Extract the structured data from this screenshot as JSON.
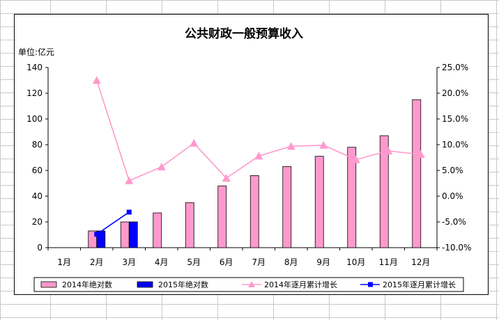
{
  "sheet": {
    "grid_color": "#c8c8c8"
  },
  "chart_data": {
    "type": "bar",
    "title": "公共财政一般预算收入",
    "ylabel": "单位:亿元",
    "categories": [
      "1月",
      "2月",
      "3月",
      "4月",
      "5月",
      "6月",
      "7月",
      "8月",
      "9月",
      "10月",
      "11月",
      "12月"
    ],
    "ylim": [
      0,
      140
    ],
    "y_ticks": [
      "0",
      "20",
      "40",
      "60",
      "80",
      "100",
      "120",
      "140"
    ],
    "y2lim": [
      -0.1,
      0.25
    ],
    "y2_ticks": [
      "-10.0%",
      "-5.0%",
      "0.0%",
      "5.0%",
      "10.0%",
      "15.0%",
      "20.0%",
      "25.0%"
    ],
    "series": [
      {
        "name": "2014年绝对数",
        "kind": "bar",
        "axis": "left",
        "color": "#ff99cc",
        "values": [
          null,
          13,
          20,
          27,
          35,
          48,
          56,
          63,
          71,
          78,
          87,
          115
        ]
      },
      {
        "name": "2015年绝对数",
        "kind": "bar",
        "axis": "left",
        "color": "#0000ff",
        "values": [
          null,
          13,
          20,
          null,
          null,
          null,
          null,
          null,
          null,
          null,
          null,
          null
        ]
      },
      {
        "name": "2014年逐月累计增长",
        "kind": "line",
        "axis": "right",
        "color": "#ff99cc",
        "marker": "triangle",
        "values": [
          null,
          0.225,
          0.03,
          0.057,
          0.103,
          0.035,
          0.078,
          0.097,
          0.099,
          0.071,
          0.088,
          0.081
        ]
      },
      {
        "name": "2015年逐月累计增长",
        "kind": "line",
        "axis": "right",
        "color": "#0000ff",
        "marker": "square",
        "values": [
          null,
          -0.074,
          -0.031,
          null,
          null,
          null,
          null,
          null,
          null,
          null,
          null,
          null
        ]
      }
    ],
    "grid": false,
    "legend_position": "bottom"
  }
}
